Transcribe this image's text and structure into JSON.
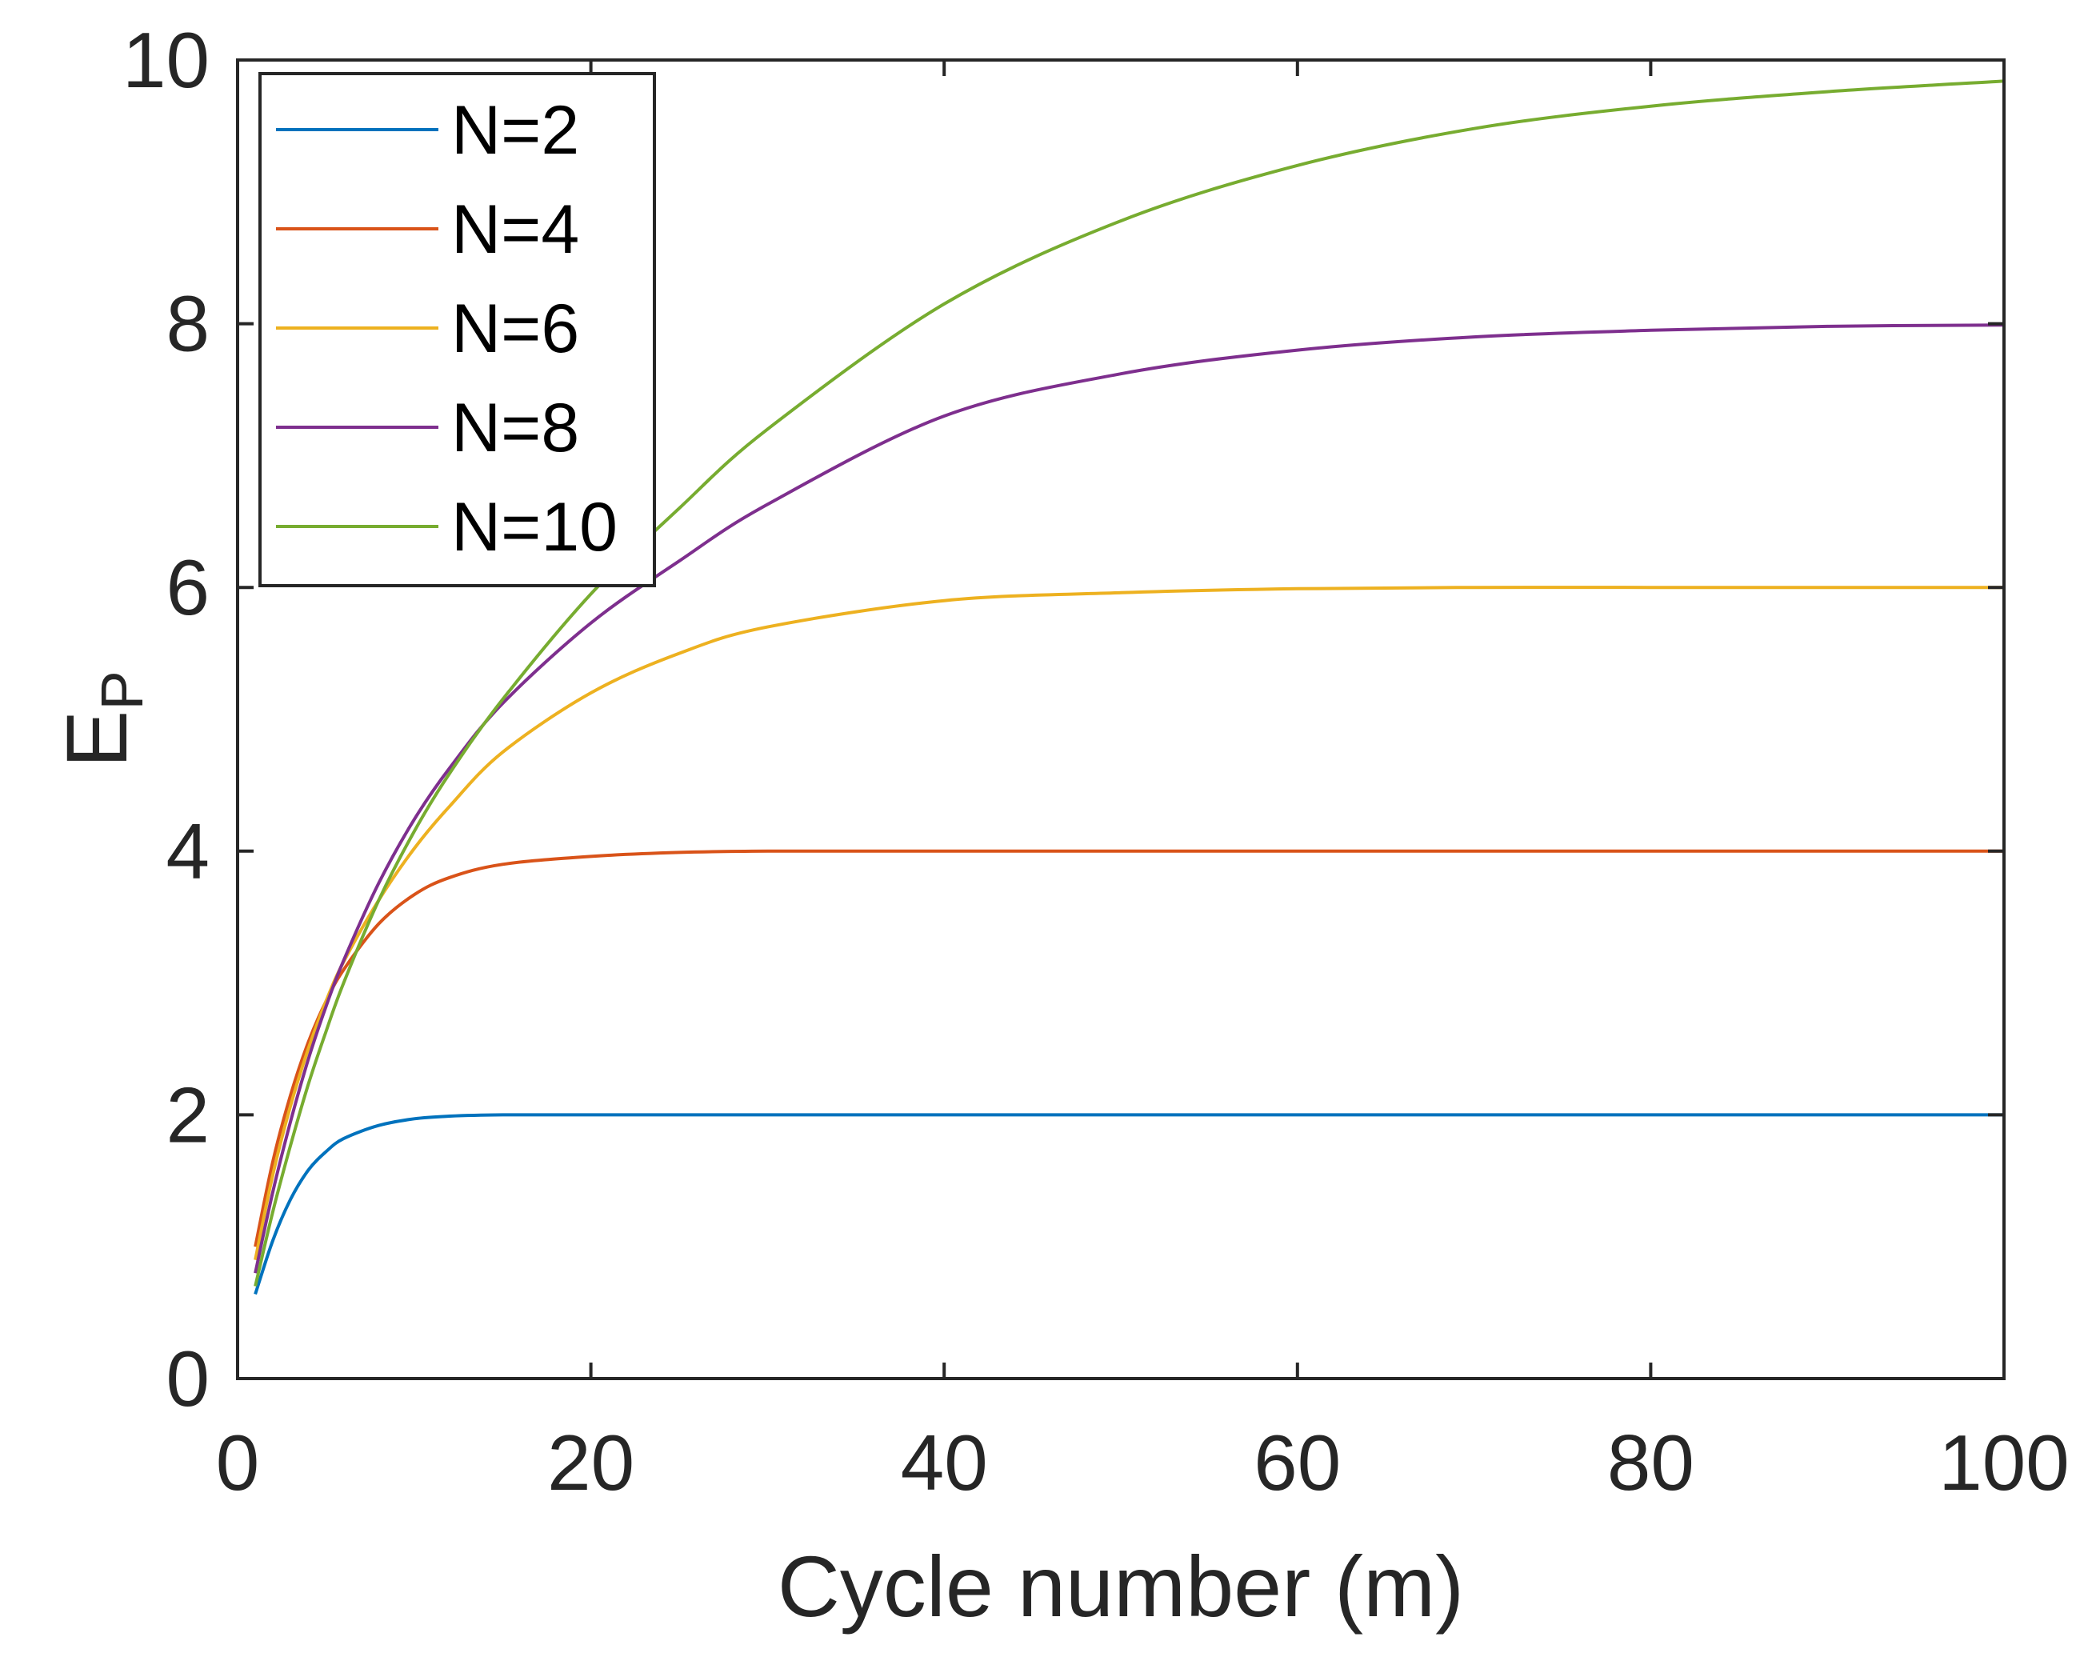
{
  "chart_data": {
    "type": "line",
    "title": "",
    "xlabel": "Cycle number (m)",
    "ylabel_main": "E",
    "ylabel_sub": "P",
    "xlim": [
      0,
      100
    ],
    "ylim": [
      0,
      10
    ],
    "xticks": [
      0,
      20,
      40,
      60,
      80,
      100
    ],
    "yticks": [
      0,
      2,
      4,
      6,
      8,
      10
    ],
    "xtick_labels": [
      "0",
      "20",
      "40",
      "60",
      "80",
      "100"
    ],
    "ytick_labels": [
      "0",
      "2",
      "4",
      "6",
      "8",
      "10"
    ],
    "grid": false,
    "legend_position": "top-left",
    "x": [
      1,
      2,
      3,
      4,
      5,
      6,
      8,
      10,
      12,
      15,
      20,
      25,
      30,
      40,
      50,
      60,
      70,
      80,
      90,
      100
    ],
    "series": [
      {
        "name": "N=2",
        "color": "#0072BD",
        "values": [
          0.64,
          1.05,
          1.36,
          1.58,
          1.72,
          1.82,
          1.92,
          1.97,
          1.99,
          2.0,
          2.0,
          2.0,
          2.0,
          2.0,
          2.0,
          2.0,
          2.0,
          2.0,
          2.0,
          2.0
        ]
      },
      {
        "name": "N=4",
        "color": "#D95319",
        "values": [
          1.0,
          1.65,
          2.15,
          2.55,
          2.86,
          3.1,
          3.45,
          3.67,
          3.8,
          3.9,
          3.96,
          3.99,
          4.0,
          4.0,
          4.0,
          4.0,
          4.0,
          4.0,
          4.0,
          4.0
        ]
      },
      {
        "name": "N=6",
        "color": "#EDB120",
        "values": [
          0.9,
          1.55,
          2.07,
          2.5,
          2.86,
          3.16,
          3.63,
          4.02,
          4.34,
          4.75,
          5.2,
          5.5,
          5.7,
          5.9,
          5.96,
          5.99,
          6.0,
          6.0,
          6.0,
          6.0
        ]
      },
      {
        "name": "N=8",
        "color": "#7E2F8E",
        "values": [
          0.8,
          1.42,
          1.95,
          2.42,
          2.82,
          3.17,
          3.76,
          4.24,
          4.63,
          5.12,
          5.73,
          6.2,
          6.63,
          7.3,
          7.62,
          7.8,
          7.9,
          7.95,
          7.98,
          7.99
        ]
      },
      {
        "name": "N=10",
        "color": "#77AC30",
        "values": [
          0.7,
          1.27,
          1.77,
          2.23,
          2.63,
          3.0,
          3.63,
          4.15,
          4.59,
          5.15,
          5.95,
          6.6,
          7.2,
          8.15,
          8.78,
          9.2,
          9.48,
          9.65,
          9.76,
          9.84
        ]
      }
    ]
  }
}
